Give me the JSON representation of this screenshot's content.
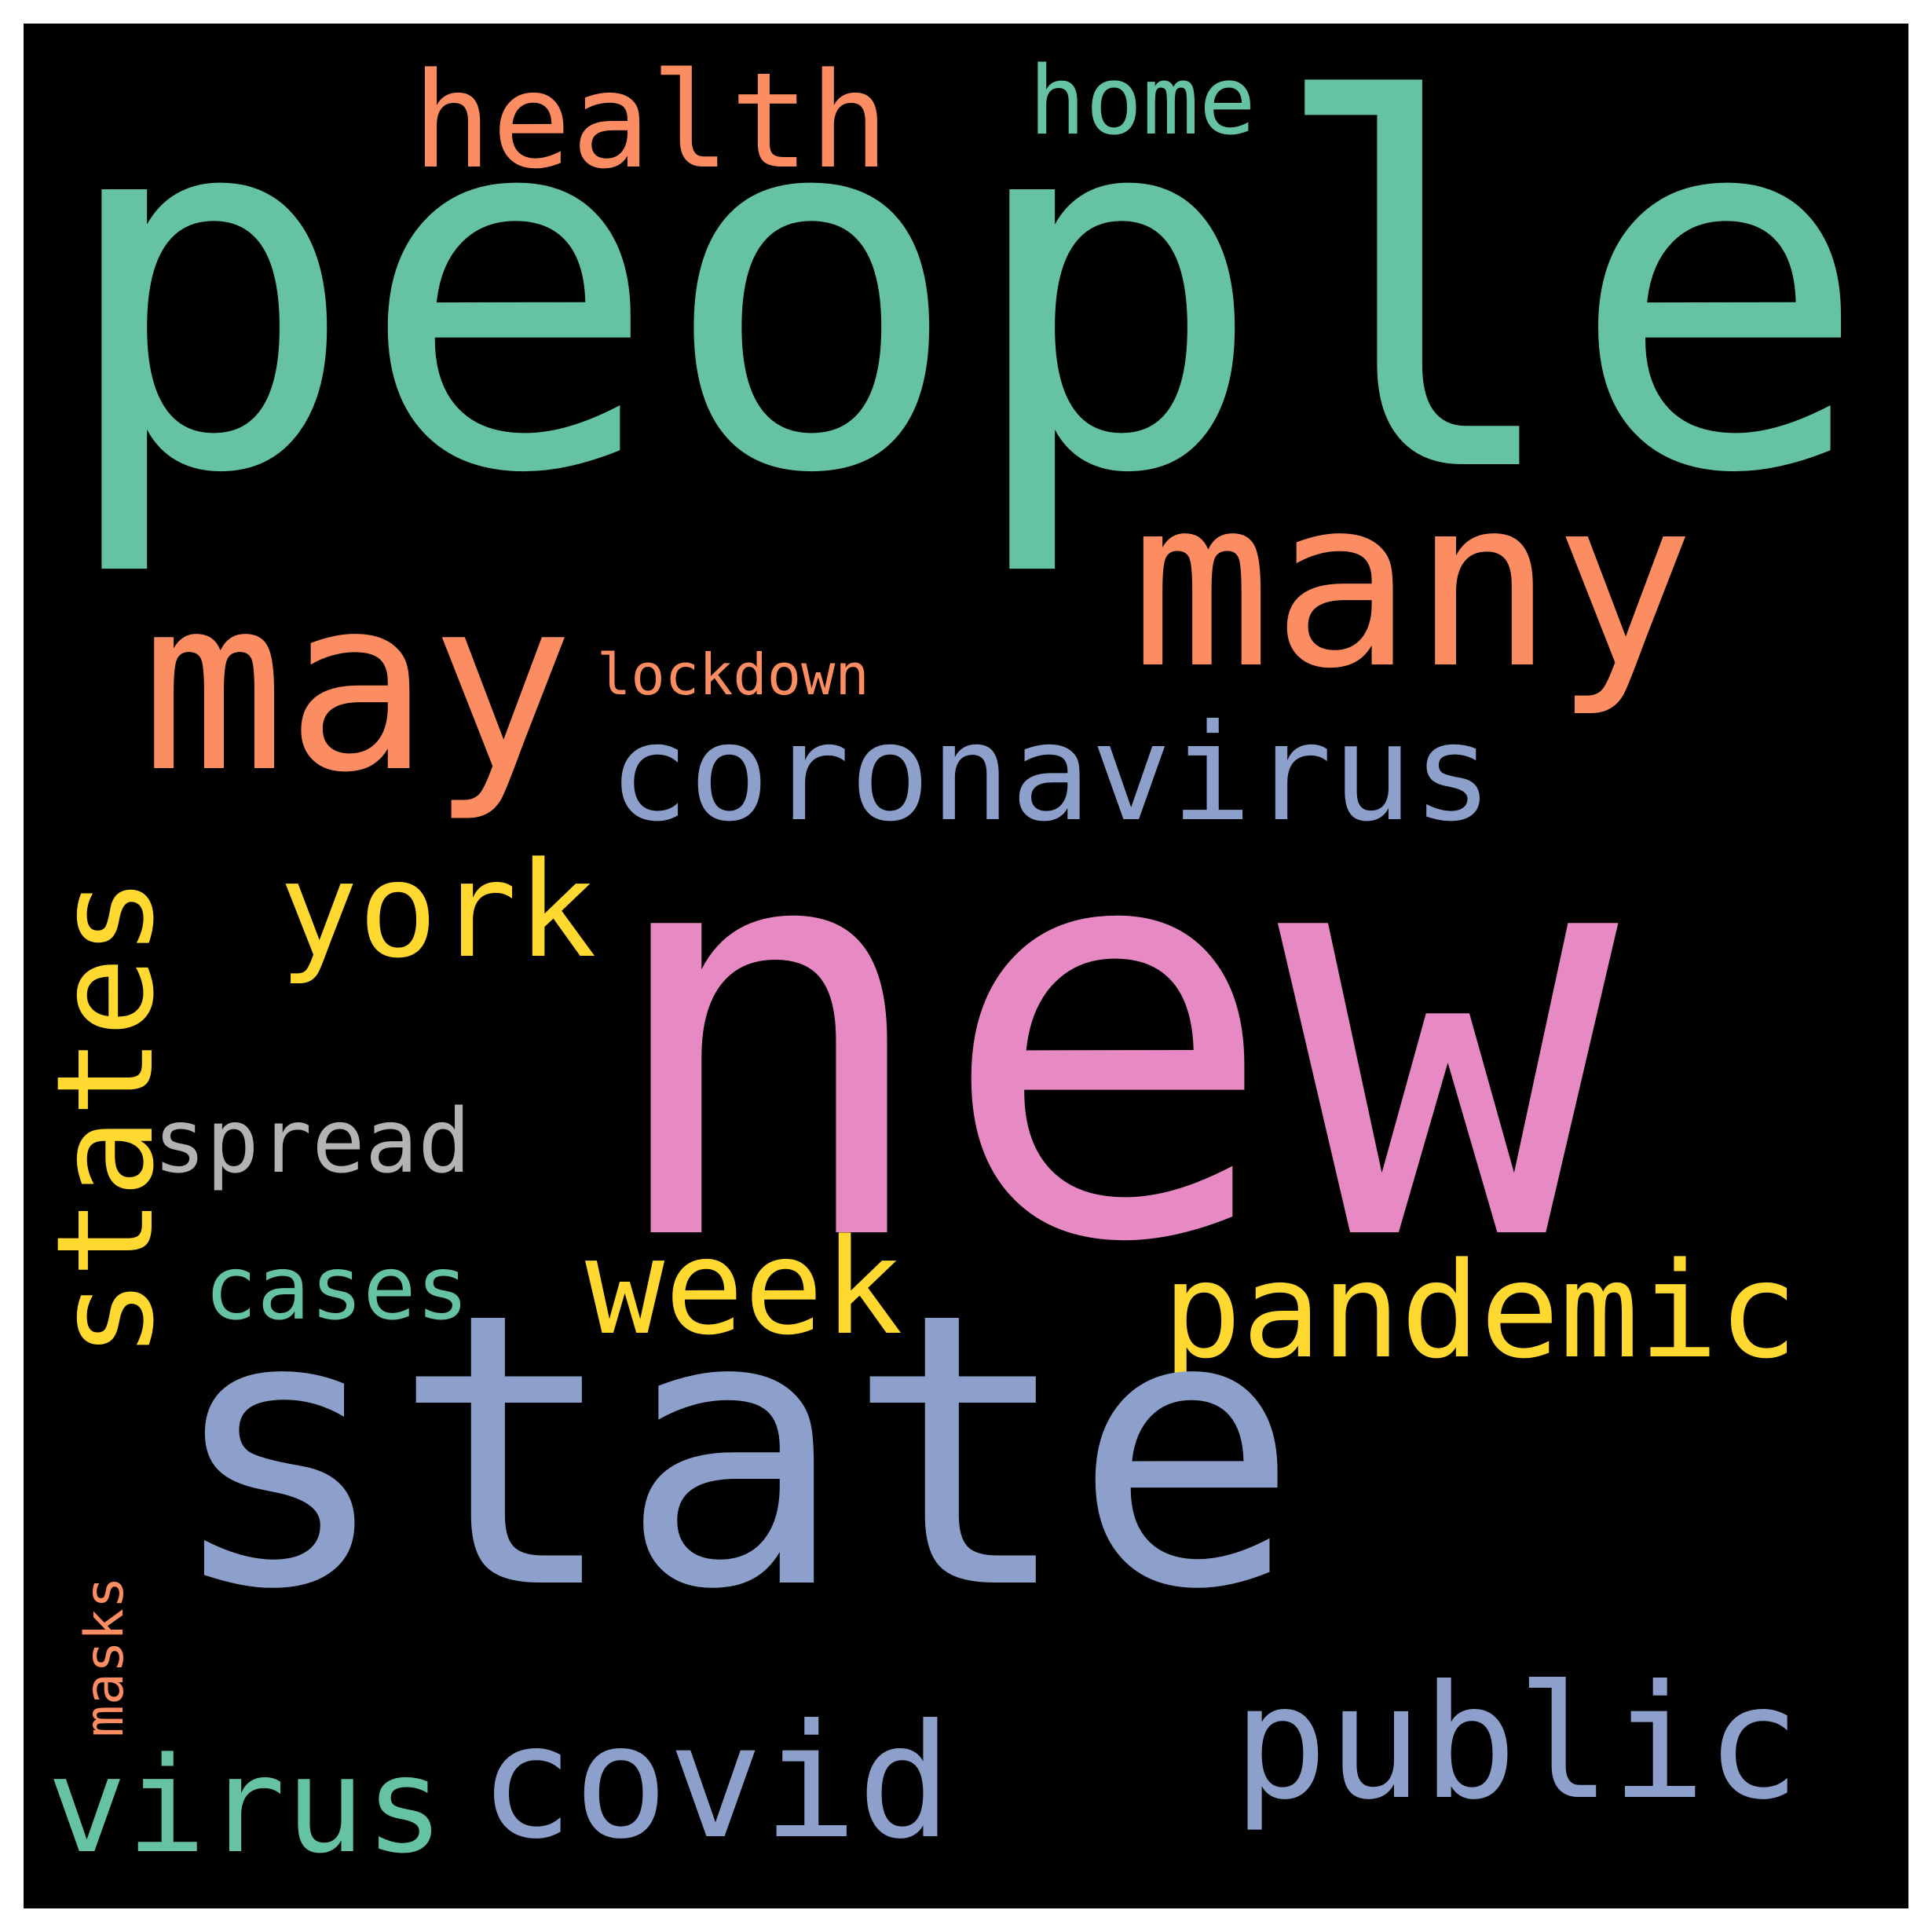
{
  "background_color": "#000000",
  "palette": {
    "teal": "#66c2a5",
    "orange": "#fc8d62",
    "blue": "#8da0cb",
    "pink": "#e78ac3",
    "yellow": "#ffd92f",
    "gray": "#b3b3b3"
  },
  "words": [
    {
      "text": "people",
      "color": "#66c2a5"
    },
    {
      "text": "new",
      "color": "#e78ac3"
    },
    {
      "text": "state",
      "color": "#8da0cb"
    },
    {
      "text": "many",
      "color": "#fc8d62"
    },
    {
      "text": "may",
      "color": "#fc8d62"
    },
    {
      "text": "health",
      "color": "#fc8d62"
    },
    {
      "text": "home",
      "color": "#66c2a5"
    },
    {
      "text": "coronavirus",
      "color": "#8da0cb"
    },
    {
      "text": "lockdown",
      "color": "#fc8d62"
    },
    {
      "text": "york",
      "color": "#ffd92f"
    },
    {
      "text": "states",
      "color": "#ffd92f"
    },
    {
      "text": "spread",
      "color": "#b3b3b3"
    },
    {
      "text": "cases",
      "color": "#66c2a5"
    },
    {
      "text": "week",
      "color": "#ffd92f"
    },
    {
      "text": "pandemic",
      "color": "#ffd92f"
    },
    {
      "text": "public",
      "color": "#8da0cb"
    },
    {
      "text": "covid",
      "color": "#8da0cb"
    },
    {
      "text": "virus",
      "color": "#66c2a5"
    },
    {
      "text": "masks",
      "color": "#fc8d62"
    }
  ]
}
